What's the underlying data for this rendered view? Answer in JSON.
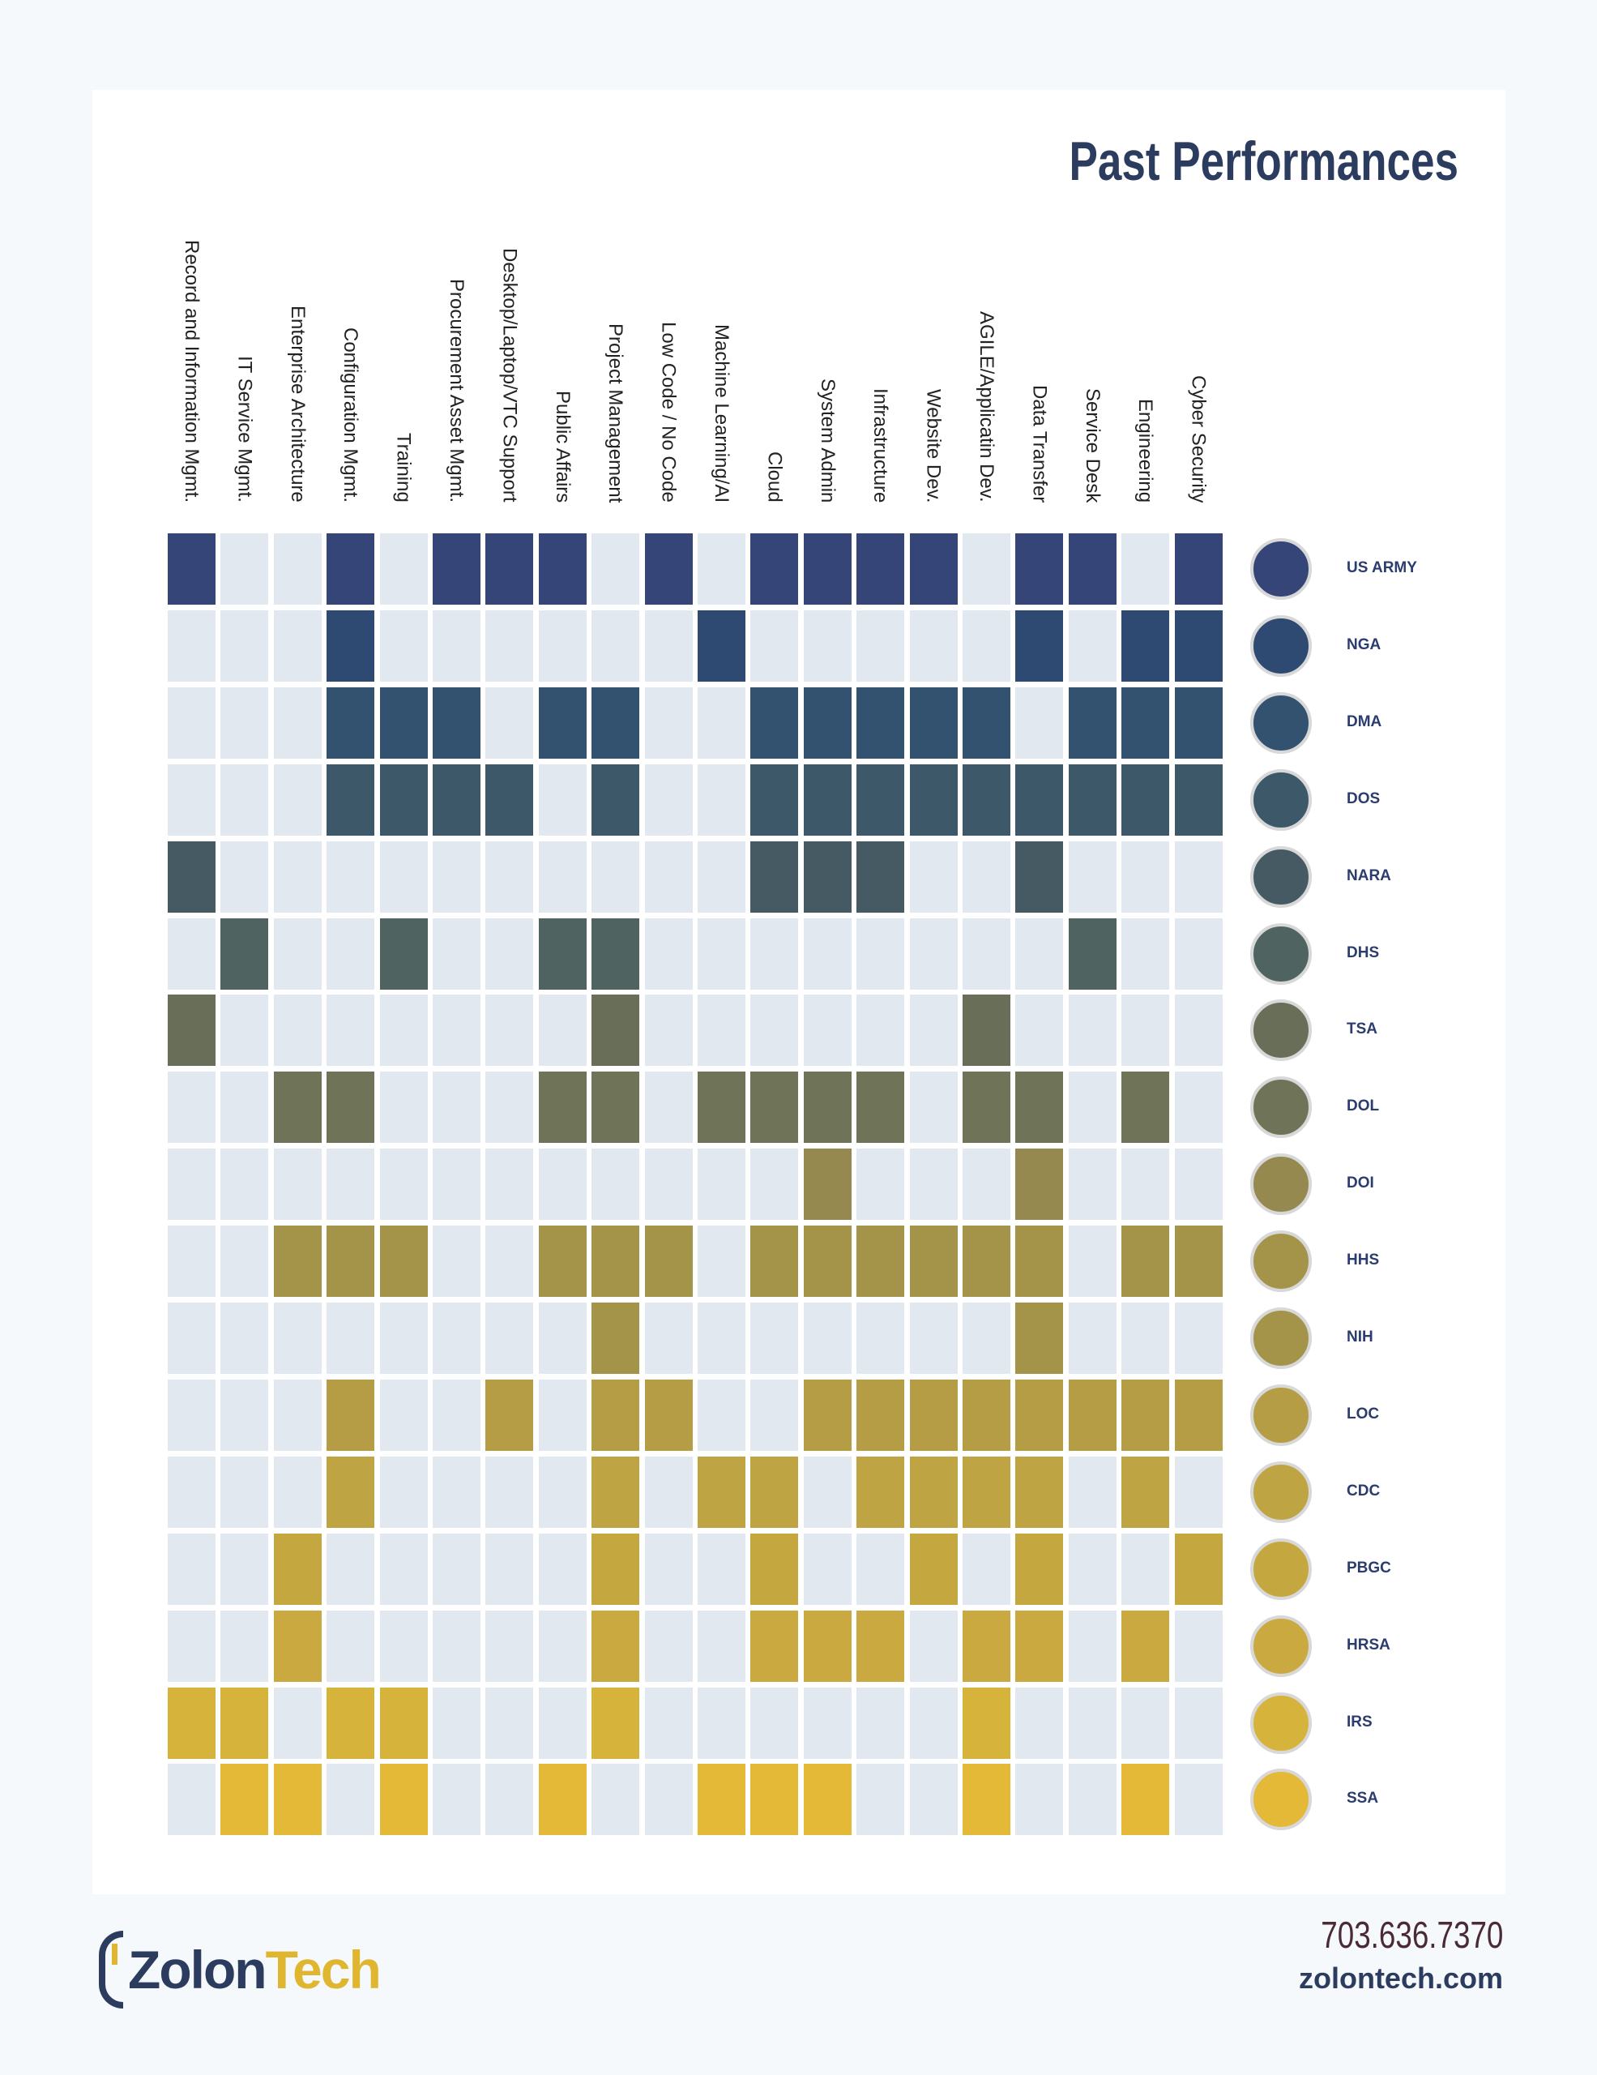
{
  "title": "Past Performances",
  "columns": [
    "Record and Information Mgmt.",
    "IT Service Mgmt.",
    "Enterprise Architecture",
    "Configuration Mgmt.",
    "Training",
    "Procurement Asset Mgmt.",
    "Desktop/Laptop/VTC Support",
    "Public Affairs",
    "Project Management",
    "Low Code / No Code",
    "Machine Learning/AI",
    "Cloud",
    "System Admin",
    "Infrastructure",
    "Website Dev.",
    "AGILE/Applicatin Dev.",
    "Data Transfer",
    "Service Desk",
    "Engineering",
    "Cyber Security"
  ],
  "empty_color": "#e1e8f0",
  "rows": [
    {
      "agency": "US ARMY",
      "color": "#354577",
      "logo": "army-star",
      "cells": [
        1,
        0,
        0,
        1,
        0,
        1,
        1,
        1,
        0,
        1,
        0,
        1,
        1,
        1,
        1,
        0,
        1,
        1,
        0,
        1
      ]
    },
    {
      "agency": "NGA",
      "color": "#2e4a72",
      "logo": "globe-seal",
      "cells": [
        0,
        0,
        0,
        1,
        0,
        0,
        0,
        0,
        0,
        0,
        1,
        0,
        0,
        0,
        0,
        0,
        1,
        0,
        1,
        1
      ]
    },
    {
      "agency": "DMA",
      "color": "#33526f",
      "logo": "dma-text",
      "cells": [
        0,
        0,
        0,
        1,
        1,
        1,
        0,
        1,
        1,
        0,
        0,
        1,
        1,
        1,
        1,
        1,
        0,
        1,
        1,
        1
      ]
    },
    {
      "agency": "DOS",
      "color": "#3c5869",
      "logo": "eagle-seal",
      "cells": [
        0,
        0,
        0,
        1,
        1,
        1,
        1,
        0,
        1,
        0,
        0,
        1,
        1,
        1,
        1,
        1,
        1,
        1,
        1,
        1
      ]
    },
    {
      "agency": "NARA",
      "color": "#465a63",
      "logo": "eagle-archives",
      "cells": [
        1,
        0,
        0,
        0,
        0,
        0,
        0,
        0,
        0,
        0,
        0,
        1,
        1,
        1,
        0,
        0,
        1,
        0,
        0,
        0
      ]
    },
    {
      "agency": "DHS",
      "color": "#4f6361",
      "logo": "dhs-seal",
      "cells": [
        0,
        1,
        0,
        0,
        1,
        0,
        0,
        1,
        1,
        0,
        0,
        0,
        0,
        0,
        0,
        0,
        0,
        1,
        0,
        0
      ]
    },
    {
      "agency": "TSA",
      "color": "#686e58",
      "logo": "tsa-seal",
      "cells": [
        1,
        0,
        0,
        0,
        0,
        0,
        0,
        0,
        1,
        0,
        0,
        0,
        0,
        0,
        0,
        1,
        0,
        0,
        0,
        0
      ]
    },
    {
      "agency": "DOL",
      "color": "#6f7459",
      "logo": "dol-seal",
      "cells": [
        0,
        0,
        1,
        1,
        0,
        0,
        0,
        1,
        1,
        0,
        1,
        1,
        1,
        1,
        0,
        1,
        1,
        0,
        1,
        0
      ]
    },
    {
      "agency": "DOI",
      "color": "#95894f",
      "logo": "bison-seal",
      "cells": [
        0,
        0,
        0,
        0,
        0,
        0,
        0,
        0,
        0,
        0,
        0,
        0,
        1,
        0,
        0,
        0,
        1,
        0,
        0,
        0
      ]
    },
    {
      "agency": "HHS",
      "color": "#a4944a",
      "logo": "hhs-seal",
      "cells": [
        0,
        0,
        1,
        1,
        1,
        0,
        0,
        1,
        1,
        1,
        0,
        1,
        1,
        1,
        1,
        1,
        1,
        0,
        1,
        1
      ]
    },
    {
      "agency": "NIH",
      "color": "#a4944a",
      "logo": "nih-badge",
      "cells": [
        0,
        0,
        0,
        0,
        0,
        0,
        0,
        0,
        1,
        0,
        0,
        0,
        0,
        0,
        0,
        0,
        1,
        0,
        0,
        0
      ]
    },
    {
      "agency": "LOC",
      "color": "#b49d44",
      "logo": "library-text",
      "cells": [
        0,
        0,
        0,
        1,
        0,
        0,
        1,
        0,
        1,
        1,
        0,
        0,
        1,
        1,
        1,
        1,
        1,
        1,
        1,
        1
      ]
    },
    {
      "agency": "CDC",
      "color": "#bfa443",
      "logo": "cdc-badge",
      "cells": [
        0,
        0,
        0,
        1,
        0,
        0,
        0,
        0,
        1,
        0,
        1,
        1,
        0,
        1,
        1,
        1,
        1,
        0,
        1,
        0
      ]
    },
    {
      "agency": "PBGC",
      "color": "#c4a83f",
      "logo": "pbgc-text",
      "cells": [
        0,
        0,
        1,
        0,
        0,
        0,
        0,
        0,
        1,
        0,
        0,
        1,
        0,
        0,
        1,
        0,
        1,
        0,
        0,
        1
      ]
    },
    {
      "agency": "HRSA",
      "color": "#caaa40",
      "logo": "hrsa-text",
      "cells": [
        0,
        0,
        1,
        0,
        0,
        0,
        0,
        0,
        1,
        0,
        0,
        1,
        1,
        1,
        0,
        1,
        1,
        0,
        1,
        0
      ]
    },
    {
      "agency": "IRS",
      "color": "#d6b33b",
      "logo": "irs-eagle",
      "cells": [
        1,
        1,
        0,
        1,
        1,
        0,
        0,
        0,
        1,
        0,
        0,
        0,
        0,
        0,
        0,
        1,
        0,
        0,
        0,
        0
      ]
    },
    {
      "agency": "SSA",
      "color": "#e3b937",
      "logo": "ssa-seal",
      "cells": [
        0,
        1,
        1,
        0,
        1,
        0,
        0,
        1,
        0,
        0,
        1,
        1,
        1,
        0,
        0,
        1,
        0,
        0,
        1,
        0
      ]
    }
  ],
  "footer": {
    "brand_part1": "Zolon",
    "brand_part2": "Tech",
    "phone": "703.636.7370",
    "website": "zolontech.com"
  }
}
